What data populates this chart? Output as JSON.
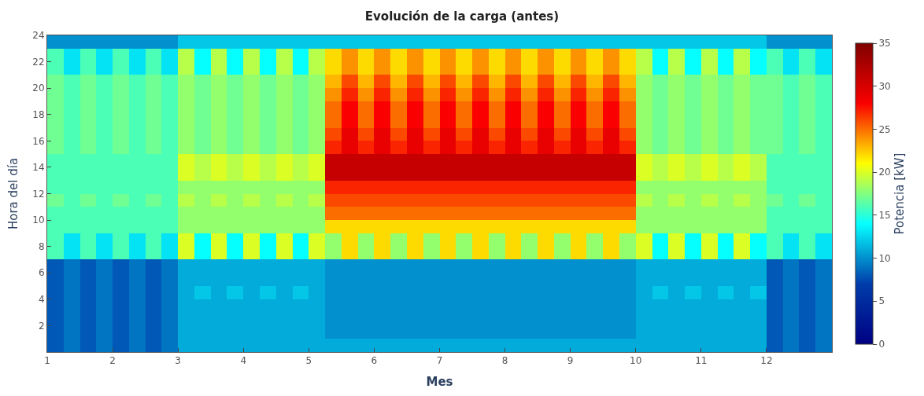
{
  "chart_data": {
    "type": "heatmap",
    "title": "Evolución de la carga (antes)",
    "xlabel": "Mes",
    "ylabel": "Hora del día",
    "clabel": "Potencia [kW]",
    "x": [
      1.125,
      1.375,
      1.625,
      1.875,
      2.125,
      2.375,
      2.625,
      2.875,
      3.125,
      3.375,
      3.625,
      3.875,
      4.125,
      4.375,
      4.625,
      4.875,
      5.125,
      5.375,
      5.625,
      5.875,
      6.125,
      6.375,
      6.625,
      6.875,
      7.125,
      7.375,
      7.625,
      7.875,
      8.125,
      8.375,
      8.625,
      8.875,
      9.125,
      9.375,
      9.625,
      9.875,
      10.125,
      10.375,
      10.625,
      10.875,
      11.125,
      11.375,
      11.625,
      11.875,
      12.125,
      12.375,
      12.625,
      12.875
    ],
    "xlim": [
      1,
      13
    ],
    "xticks": [
      1,
      2,
      3,
      4,
      5,
      6,
      7,
      8,
      9,
      10,
      11,
      12
    ],
    "ylim": [
      0,
      24
    ],
    "yticks": [
      2,
      4,
      6,
      8,
      10,
      12,
      14,
      16,
      18,
      20,
      22,
      24
    ],
    "clim": [
      0,
      35
    ],
    "cticks": [
      0,
      5,
      10,
      15,
      20,
      25,
      30,
      35
    ],
    "cells": [
      [
        10,
        10,
        10,
        10,
        10,
        10,
        10,
        10,
        12,
        12,
        12,
        12,
        12,
        12,
        12,
        12,
        12,
        12,
        12,
        12,
        12,
        12,
        12,
        12,
        12,
        12,
        12,
        12,
        12,
        12,
        12,
        12,
        12,
        12,
        12,
        12,
        12,
        12,
        12,
        12,
        12,
        12,
        12,
        12,
        10,
        10,
        10,
        10
      ],
      [
        16,
        13,
        16,
        13,
        16,
        13,
        16,
        13,
        19,
        14,
        19,
        14,
        19,
        14,
        19,
        14,
        19,
        22,
        24,
        22,
        24,
        22,
        24,
        22,
        24,
        22,
        24,
        22,
        24,
        22,
        24,
        22,
        24,
        22,
        24,
        22,
        19,
        14,
        19,
        14,
        19,
        14,
        19,
        14,
        16,
        13,
        16,
        13
      ],
      [
        16,
        13,
        16,
        13,
        16,
        13,
        16,
        13,
        19,
        14,
        19,
        14,
        19,
        14,
        19,
        14,
        19,
        22,
        24,
        22,
        24,
        22,
        24,
        22,
        24,
        22,
        24,
        22,
        24,
        22,
        24,
        22,
        24,
        22,
        24,
        22,
        19,
        14,
        19,
        14,
        19,
        14,
        19,
        14,
        16,
        13,
        16,
        13
      ],
      [
        17,
        16,
        17,
        16,
        17,
        16,
        17,
        16,
        18,
        17,
        18,
        17,
        18,
        17,
        18,
        17,
        18,
        23,
        26,
        23,
        26,
        23,
        26,
        23,
        26,
        23,
        26,
        23,
        26,
        23,
        26,
        23,
        26,
        23,
        26,
        23,
        18,
        17,
        18,
        17,
        18,
        17,
        18,
        17,
        17,
        16,
        17,
        16
      ],
      [
        17,
        16,
        17,
        16,
        17,
        16,
        17,
        16,
        18,
        17,
        18,
        17,
        18,
        17,
        18,
        17,
        18,
        24,
        27,
        24,
        27,
        24,
        27,
        24,
        27,
        24,
        27,
        24,
        27,
        24,
        27,
        24,
        27,
        24,
        27,
        24,
        18,
        17,
        18,
        17,
        18,
        17,
        18,
        17,
        17,
        16,
        17,
        16
      ],
      [
        17,
        16,
        17,
        16,
        17,
        16,
        17,
        16,
        18,
        17,
        18,
        17,
        18,
        17,
        18,
        17,
        18,
        25,
        28,
        25,
        28,
        25,
        28,
        25,
        28,
        25,
        28,
        25,
        28,
        25,
        28,
        25,
        28,
        25,
        28,
        25,
        18,
        17,
        18,
        17,
        18,
        17,
        18,
        17,
        17,
        16,
        17,
        16
      ],
      [
        17,
        16,
        17,
        16,
        17,
        16,
        17,
        16,
        18,
        17,
        18,
        17,
        18,
        17,
        18,
        17,
        18,
        25,
        28,
        25,
        28,
        25,
        28,
        25,
        28,
        25,
        28,
        25,
        28,
        25,
        28,
        25,
        28,
        25,
        28,
        25,
        18,
        17,
        18,
        17,
        18,
        17,
        18,
        17,
        17,
        16,
        17,
        16
      ],
      [
        17,
        16,
        17,
        16,
        17,
        16,
        17,
        16,
        18,
        17,
        18,
        17,
        18,
        17,
        18,
        17,
        18,
        26,
        29,
        26,
        29,
        26,
        29,
        26,
        29,
        26,
        29,
        26,
        29,
        26,
        29,
        26,
        29,
        26,
        29,
        26,
        18,
        17,
        18,
        17,
        18,
        17,
        18,
        17,
        17,
        16,
        17,
        16
      ],
      [
        17,
        16,
        17,
        16,
        17,
        16,
        17,
        16,
        18,
        17,
        18,
        17,
        18,
        17,
        18,
        17,
        18,
        27,
        29,
        27,
        29,
        27,
        29,
        27,
        29,
        27,
        29,
        27,
        29,
        27,
        29,
        27,
        29,
        27,
        29,
        27,
        18,
        17,
        18,
        17,
        18,
        17,
        18,
        17,
        17,
        16,
        17,
        16
      ],
      [
        16,
        16,
        16,
        16,
        16,
        16,
        16,
        16,
        20,
        19,
        20,
        19,
        20,
        19,
        20,
        19,
        20,
        31,
        31,
        31,
        31,
        31,
        31,
        31,
        31,
        31,
        31,
        31,
        31,
        31,
        31,
        31,
        31,
        31,
        31,
        31,
        20,
        19,
        20,
        19,
        20,
        19,
        20,
        19,
        16,
        16,
        16,
        16
      ],
      [
        16,
        16,
        16,
        16,
        16,
        16,
        16,
        16,
        20,
        19,
        20,
        19,
        20,
        19,
        20,
        19,
        20,
        31,
        31,
        31,
        31,
        31,
        31,
        31,
        31,
        31,
        31,
        31,
        31,
        31,
        31,
        31,
        31,
        31,
        31,
        31,
        20,
        19,
        20,
        19,
        20,
        19,
        20,
        19,
        16,
        16,
        16,
        16
      ],
      [
        16,
        16,
        16,
        16,
        16,
        16,
        16,
        16,
        18,
        18,
        18,
        18,
        18,
        18,
        18,
        18,
        18,
        27,
        27,
        27,
        27,
        27,
        27,
        27,
        27,
        27,
        27,
        27,
        27,
        27,
        27,
        27,
        27,
        27,
        27,
        27,
        18,
        18,
        18,
        18,
        18,
        18,
        18,
        18,
        16,
        16,
        16,
        16
      ],
      [
        17,
        16,
        17,
        16,
        17,
        16,
        17,
        16,
        19,
        18,
        19,
        18,
        19,
        18,
        19,
        18,
        19,
        26,
        26,
        26,
        26,
        26,
        26,
        26,
        26,
        26,
        26,
        26,
        26,
        26,
        26,
        26,
        26,
        26,
        26,
        26,
        19,
        18,
        19,
        18,
        19,
        18,
        19,
        18,
        17,
        16,
        17,
        16
      ],
      [
        16,
        16,
        16,
        16,
        16,
        16,
        16,
        16,
        18,
        18,
        18,
        18,
        18,
        18,
        18,
        18,
        18,
        25,
        25,
        25,
        25,
        25,
        25,
        25,
        25,
        25,
        25,
        25,
        25,
        25,
        25,
        25,
        25,
        25,
        25,
        25,
        18,
        18,
        18,
        18,
        18,
        18,
        18,
        18,
        16,
        16,
        16,
        16
      ],
      [
        16,
        16,
        16,
        16,
        16,
        16,
        16,
        16,
        18,
        18,
        18,
        18,
        18,
        18,
        18,
        18,
        18,
        22,
        22,
        22,
        22,
        22,
        22,
        22,
        22,
        22,
        22,
        22,
        22,
        22,
        22,
        22,
        22,
        22,
        22,
        22,
        18,
        18,
        18,
        18,
        18,
        18,
        18,
        18,
        16,
        16,
        16,
        16
      ],
      [
        16,
        13,
        16,
        13,
        16,
        13,
        16,
        13,
        20,
        14,
        20,
        14,
        20,
        14,
        20,
        14,
        20,
        18,
        22,
        18,
        22,
        18,
        22,
        18,
        22,
        18,
        22,
        18,
        22,
        18,
        22,
        18,
        22,
        18,
        22,
        18,
        20,
        14,
        20,
        14,
        20,
        14,
        20,
        14,
        16,
        13,
        16,
        13
      ],
      [
        16,
        13,
        16,
        13,
        16,
        13,
        16,
        13,
        20,
        14,
        20,
        14,
        20,
        14,
        20,
        14,
        20,
        18,
        22,
        18,
        22,
        18,
        22,
        18,
        22,
        18,
        22,
        18,
        22,
        18,
        22,
        18,
        22,
        18,
        22,
        18,
        20,
        14,
        20,
        14,
        20,
        14,
        20,
        14,
        16,
        13,
        16,
        13
      ],
      [
        8,
        9,
        8,
        9,
        8,
        9,
        8,
        9,
        11,
        11,
        11,
        11,
        11,
        11,
        11,
        11,
        11,
        10,
        10,
        10,
        10,
        10,
        10,
        10,
        10,
        10,
        10,
        10,
        10,
        10,
        10,
        10,
        10,
        10,
        10,
        10,
        11,
        11,
        11,
        11,
        11,
        11,
        11,
        11,
        8,
        9,
        8,
        9
      ],
      [
        8,
        9,
        8,
        9,
        8,
        9,
        8,
        9,
        11,
        11,
        11,
        11,
        11,
        11,
        11,
        11,
        11,
        10,
        10,
        10,
        10,
        10,
        10,
        10,
        10,
        10,
        10,
        10,
        10,
        10,
        10,
        10,
        10,
        10,
        10,
        10,
        11,
        11,
        11,
        11,
        11,
        11,
        11,
        11,
        8,
        9,
        8,
        9
      ],
      [
        8,
        9,
        8,
        9,
        8,
        9,
        8,
        9,
        11,
        12,
        11,
        12,
        11,
        12,
        11,
        12,
        11,
        10,
        10,
        10,
        10,
        10,
        10,
        10,
        10,
        10,
        10,
        10,
        10,
        10,
        10,
        10,
        10,
        10,
        10,
        10,
        11,
        12,
        11,
        12,
        11,
        12,
        11,
        12,
        8,
        9,
        8,
        9
      ],
      [
        8,
        9,
        8,
        9,
        8,
        9,
        8,
        9,
        11,
        11,
        11,
        11,
        11,
        11,
        11,
        11,
        11,
        10,
        10,
        10,
        10,
        10,
        10,
        10,
        10,
        10,
        10,
        10,
        10,
        10,
        10,
        10,
        10,
        10,
        10,
        10,
        11,
        11,
        11,
        11,
        11,
        11,
        11,
        11,
        8,
        9,
        8,
        9
      ],
      [
        8,
        9,
        8,
        9,
        8,
        9,
        8,
        9,
        11,
        11,
        11,
        11,
        11,
        11,
        11,
        11,
        11,
        10,
        10,
        10,
        10,
        10,
        10,
        10,
        10,
        10,
        10,
        10,
        10,
        10,
        10,
        10,
        10,
        10,
        10,
        10,
        11,
        11,
        11,
        11,
        11,
        11,
        11,
        11,
        8,
        9,
        8,
        9
      ],
      [
        8,
        9,
        8,
        9,
        8,
        9,
        8,
        9,
        11,
        11,
        11,
        11,
        11,
        11,
        11,
        11,
        11,
        10,
        10,
        10,
        10,
        10,
        10,
        10,
        10,
        10,
        10,
        10,
        10,
        10,
        10,
        10,
        10,
        10,
        10,
        10,
        11,
        11,
        11,
        11,
        11,
        11,
        11,
        11,
        8,
        9,
        8,
        9
      ],
      [
        8,
        9,
        8,
        9,
        8,
        9,
        8,
        9,
        11,
        11,
        11,
        11,
        11,
        11,
        11,
        11,
        11,
        11,
        11,
        11,
        11,
        11,
        11,
        11,
        11,
        11,
        11,
        11,
        11,
        11,
        11,
        11,
        11,
        11,
        11,
        11,
        11,
        11,
        11,
        11,
        11,
        11,
        11,
        11,
        8,
        9,
        8,
        9
      ]
    ]
  }
}
